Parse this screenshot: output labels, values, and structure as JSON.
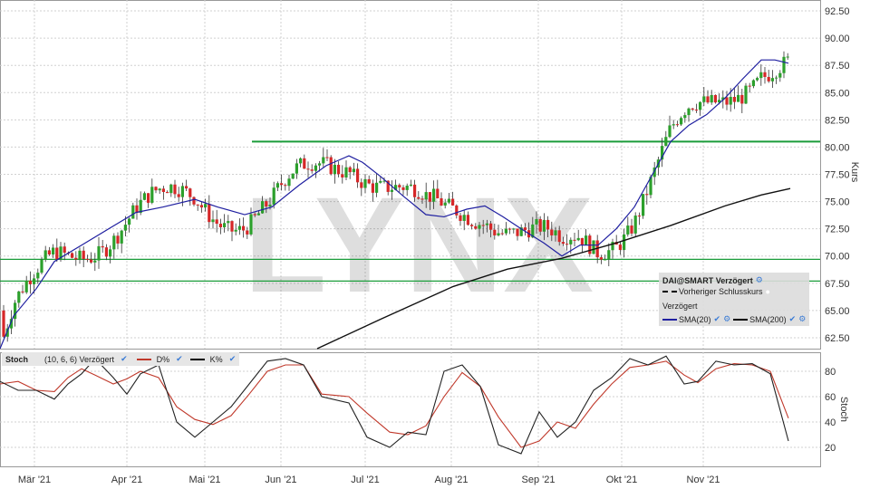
{
  "watermark": "LYNX",
  "main_axis_label": "Kurs",
  "stoch_axis_label": "Stoch",
  "legend": {
    "title": "DAI@SMART Verzögert",
    "prev_close": "Vorheriger Schlusskurs",
    "delayed": "Verzögert",
    "sma20": "SMA(20)",
    "sma200": "SMA(200)"
  },
  "stoch_header": {
    "name": "Stoch",
    "params": "(10, 6, 6) Verzögert",
    "d_label": "D%",
    "k_label": "K%"
  },
  "colors": {
    "up": "#2ca02c",
    "down": "#d62728",
    "sma20": "#1f1fa0",
    "sma200": "#111111",
    "support": "#1a9c3a",
    "stoch_d": "#c0392b",
    "stoch_k": "#222222",
    "grid": "#d0d0d0"
  },
  "chart_data": [
    {
      "type": "candlestick",
      "title": "",
      "ylabel": "Kurs",
      "ylim": [
        61.5,
        93.5
      ],
      "y_ticks": [
        "92.50",
        "90.00",
        "87.50",
        "85.00",
        "82.50",
        "80.00",
        "77.50",
        "75.00",
        "72.50",
        "70.00",
        "67.50",
        "65.00",
        "62.50"
      ],
      "x_ticks": [
        "Mär '21",
        "Apr '21",
        "Mai '21",
        "Jun '21",
        "Jul '21",
        "Aug '21",
        "Sep '21",
        "Okt '21",
        "Nov '21"
      ],
      "horizontal_lines": [
        80.5,
        69.7,
        67.7
      ],
      "series": [
        {
          "name": "SMA(20)",
          "points": [
            [
              0,
              61.5
            ],
            [
              15,
              64.5
            ],
            [
              40,
              67
            ],
            [
              60,
              69.5
            ],
            [
              90,
              71
            ],
            [
              120,
              72.5
            ],
            [
              150,
              74
            ],
            [
              180,
              74.5
            ],
            [
              215,
              75.2
            ],
            [
              240,
              74.5
            ],
            [
              270,
              73.8
            ],
            [
              300,
              74.5
            ],
            [
              330,
              76.5
            ],
            [
              360,
              78.3
            ],
            [
              385,
              79.2
            ],
            [
              400,
              78.6
            ],
            [
              420,
              77.3
            ],
            [
              445,
              75.5
            ],
            [
              470,
              73.8
            ],
            [
              490,
              73.6
            ],
            [
              515,
              74.3
            ],
            [
              535,
              74.6
            ],
            [
              555,
              73.6
            ],
            [
              575,
              72.5
            ],
            [
              600,
              71.2
            ],
            [
              620,
              70
            ],
            [
              640,
              71
            ],
            [
              660,
              71
            ],
            [
              680,
              72.5
            ],
            [
              700,
              74.5
            ],
            [
              720,
              77.5
            ],
            [
              740,
              80.5
            ],
            [
              760,
              82
            ],
            [
              780,
              83
            ],
            [
              800,
              84.5
            ],
            [
              820,
              86.3
            ],
            [
              840,
              88
            ],
            [
              855,
              88
            ],
            [
              870,
              87.7
            ]
          ]
        },
        {
          "name": "SMA(200)",
          "points": [
            [
              350,
              61.5
            ],
            [
              420,
              64.2
            ],
            [
              500,
              67.2
            ],
            [
              560,
              68.8
            ],
            [
              620,
              69.8
            ],
            [
              680,
              71.2
            ],
            [
              740,
              72.8
            ],
            [
              800,
              74.6
            ],
            [
              840,
              75.6
            ],
            [
              872,
              76.2
            ]
          ]
        }
      ]
    },
    {
      "type": "line",
      "title": "",
      "ylabel": "Stoch",
      "ylim": [
        5,
        95
      ],
      "y_ticks": [
        "80",
        "60",
        "40",
        "20"
      ],
      "series": [
        {
          "name": "D%",
          "points": [
            [
              0,
              70
            ],
            [
              20,
              72
            ],
            [
              40,
              65
            ],
            [
              60,
              64
            ],
            [
              75,
              75
            ],
            [
              90,
              82
            ],
            [
              105,
              77
            ],
            [
              125,
              70
            ],
            [
              140,
              74
            ],
            [
              155,
              80
            ],
            [
              175,
              75
            ],
            [
              195,
              52
            ],
            [
              215,
              42
            ],
            [
              235,
              38
            ],
            [
              255,
              45
            ],
            [
              275,
              62
            ],
            [
              295,
              80
            ],
            [
              315,
              85
            ],
            [
              335,
              85
            ],
            [
              355,
              62
            ],
            [
              385,
              60
            ],
            [
              405,
              47
            ],
            [
              430,
              32
            ],
            [
              450,
              30
            ],
            [
              470,
              37
            ],
            [
              490,
              60
            ],
            [
              510,
              79
            ],
            [
              530,
              68
            ],
            [
              550,
              44
            ],
            [
              575,
              20
            ],
            [
              595,
              25
            ],
            [
              615,
              40
            ],
            [
              635,
              35
            ],
            [
              655,
              54
            ],
            [
              675,
              70
            ],
            [
              695,
              83
            ],
            [
              715,
              85
            ],
            [
              735,
              88
            ],
            [
              755,
              77
            ],
            [
              770,
              71
            ],
            [
              790,
              82
            ],
            [
              810,
              86
            ],
            [
              830,
              85
            ],
            [
              850,
              80
            ],
            [
              870,
              43
            ]
          ]
        },
        {
          "name": "K%",
          "points": [
            [
              0,
              72
            ],
            [
              20,
              65
            ],
            [
              40,
              65
            ],
            [
              60,
              58
            ],
            [
              75,
              70
            ],
            [
              90,
              78
            ],
            [
              105,
              90
            ],
            [
              125,
              75
            ],
            [
              140,
              62
            ],
            [
              155,
              78
            ],
            [
              175,
              85
            ],
            [
              195,
              40
            ],
            [
              215,
              28
            ],
            [
              235,
              40
            ],
            [
              255,
              52
            ],
            [
              275,
              70
            ],
            [
              295,
              88
            ],
            [
              315,
              90
            ],
            [
              335,
              85
            ],
            [
              355,
              60
            ],
            [
              385,
              55
            ],
            [
              405,
              28
            ],
            [
              430,
              20
            ],
            [
              450,
              32
            ],
            [
              470,
              30
            ],
            [
              490,
              80
            ],
            [
              510,
              85
            ],
            [
              530,
              68
            ],
            [
              550,
              22
            ],
            [
              575,
              15
            ],
            [
              595,
              48
            ],
            [
              615,
              28
            ],
            [
              635,
              40
            ],
            [
              655,
              65
            ],
            [
              675,
              75
            ],
            [
              695,
              90
            ],
            [
              715,
              85
            ],
            [
              735,
              92
            ],
            [
              755,
              70
            ],
            [
              770,
              72
            ],
            [
              790,
              88
            ],
            [
              810,
              85
            ],
            [
              830,
              86
            ],
            [
              850,
              78
            ],
            [
              870,
              25
            ]
          ]
        }
      ]
    }
  ]
}
